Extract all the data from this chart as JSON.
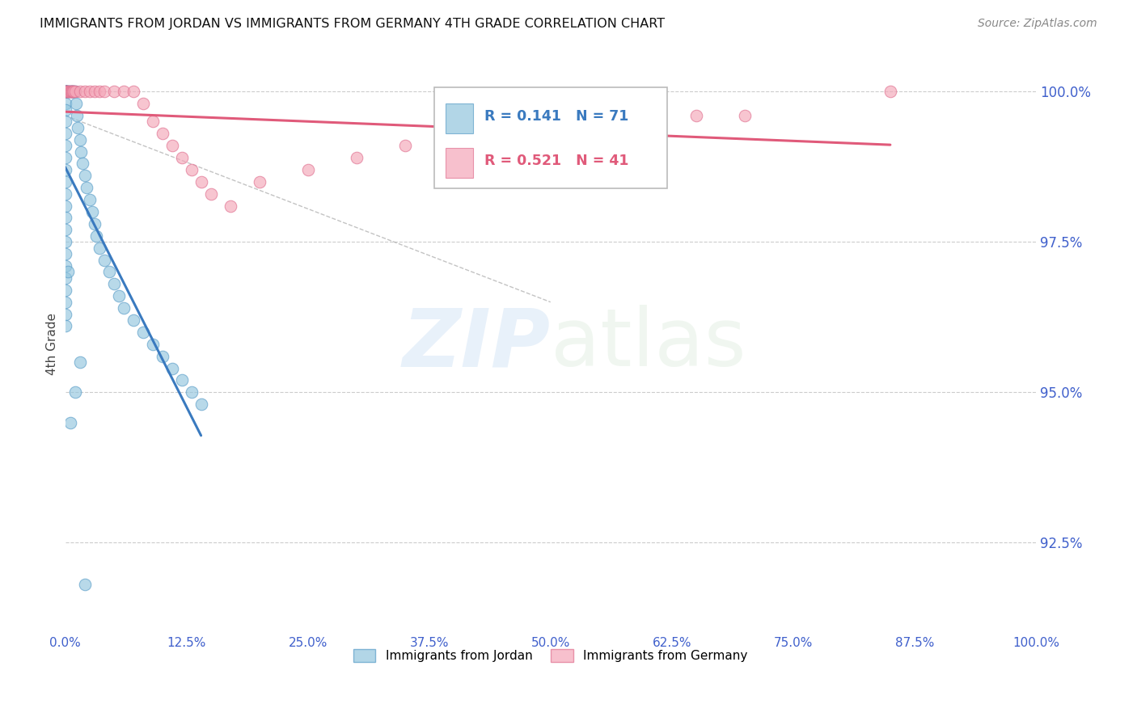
{
  "title": "IMMIGRANTS FROM JORDAN VS IMMIGRANTS FROM GERMANY 4TH GRADE CORRELATION CHART",
  "source": "Source: ZipAtlas.com",
  "ylabel": "4th Grade",
  "watermark_zip": "ZIP",
  "watermark_atlas": "atlas",
  "jordan_R": 0.141,
  "jordan_N": 71,
  "germany_R": 0.521,
  "germany_N": 41,
  "jordan_color": "#92c5de",
  "germany_color": "#f4a6b8",
  "jordan_line_color": "#3a7abf",
  "germany_line_color": "#e05a7a",
  "jordan_edge_color": "#5a9dc8",
  "germany_edge_color": "#e07090",
  "ytick_color": "#4060cc",
  "xtick_color": "#4060cc",
  "grid_color": "#cccccc",
  "yticks": [
    92.5,
    95.0,
    97.5,
    100.0
  ],
  "xticks": [
    0.0,
    12.5,
    25.0,
    37.5,
    50.0,
    62.5,
    75.0,
    87.5,
    100.0
  ],
  "xlim": [
    0.0,
    100.0
  ],
  "ylim": [
    91.0,
    100.6
  ],
  "jordan_x": [
    0.0,
    0.0,
    0.0,
    0.0,
    0.0,
    0.0,
    0.0,
    0.0,
    0.0,
    0.0,
    0.0,
    0.0,
    0.0,
    0.0,
    0.0,
    0.0,
    0.0,
    0.0,
    0.0,
    0.0,
    0.0,
    0.0,
    0.0,
    0.0,
    0.0,
    0.0,
    0.0,
    0.0,
    0.0,
    0.0,
    0.1,
    0.2,
    0.3,
    0.4,
    0.5,
    0.6,
    0.7,
    0.8,
    0.9,
    1.0,
    1.1,
    1.2,
    1.3,
    1.5,
    1.6,
    1.8,
    2.0,
    2.2,
    2.5,
    2.8,
    3.0,
    3.2,
    3.5,
    4.0,
    4.5,
    5.0,
    5.5,
    6.0,
    7.0,
    8.0,
    9.0,
    10.0,
    11.0,
    12.0,
    13.0,
    14.0,
    1.0,
    0.5,
    1.5,
    0.3,
    2.0
  ],
  "jordan_y": [
    100.0,
    100.0,
    100.0,
    100.0,
    100.0,
    100.0,
    100.0,
    100.0,
    100.0,
    100.0,
    99.8,
    99.7,
    99.5,
    99.3,
    99.1,
    98.9,
    98.7,
    98.5,
    98.3,
    98.1,
    97.9,
    97.7,
    97.5,
    97.3,
    97.1,
    96.9,
    96.7,
    96.5,
    96.3,
    96.1,
    100.0,
    100.0,
    100.0,
    100.0,
    100.0,
    100.0,
    100.0,
    100.0,
    100.0,
    100.0,
    99.8,
    99.6,
    99.4,
    99.2,
    99.0,
    98.8,
    98.6,
    98.4,
    98.2,
    98.0,
    97.8,
    97.6,
    97.4,
    97.2,
    97.0,
    96.8,
    96.6,
    96.4,
    96.2,
    96.0,
    95.8,
    95.6,
    95.4,
    95.2,
    95.0,
    94.8,
    95.0,
    94.5,
    95.5,
    97.0,
    91.8
  ],
  "germany_x": [
    0.0,
    0.1,
    0.2,
    0.3,
    0.4,
    0.5,
    0.6,
    0.7,
    0.8,
    0.9,
    1.0,
    1.5,
    2.0,
    2.5,
    3.0,
    3.5,
    4.0,
    5.0,
    6.0,
    7.0,
    8.0,
    9.0,
    10.0,
    11.0,
    12.0,
    13.0,
    14.0,
    15.0,
    17.0,
    20.0,
    25.0,
    30.0,
    35.0,
    40.0,
    45.0,
    50.0,
    55.0,
    60.0,
    65.0,
    70.0,
    85.0
  ],
  "germany_y": [
    100.0,
    100.0,
    100.0,
    100.0,
    100.0,
    100.0,
    100.0,
    100.0,
    100.0,
    100.0,
    100.0,
    100.0,
    100.0,
    100.0,
    100.0,
    100.0,
    100.0,
    100.0,
    100.0,
    100.0,
    99.8,
    99.5,
    99.3,
    99.1,
    98.9,
    98.7,
    98.5,
    98.3,
    98.1,
    98.5,
    98.7,
    98.9,
    99.1,
    99.2,
    99.3,
    99.4,
    99.5,
    99.5,
    99.6,
    99.6,
    100.0
  ]
}
